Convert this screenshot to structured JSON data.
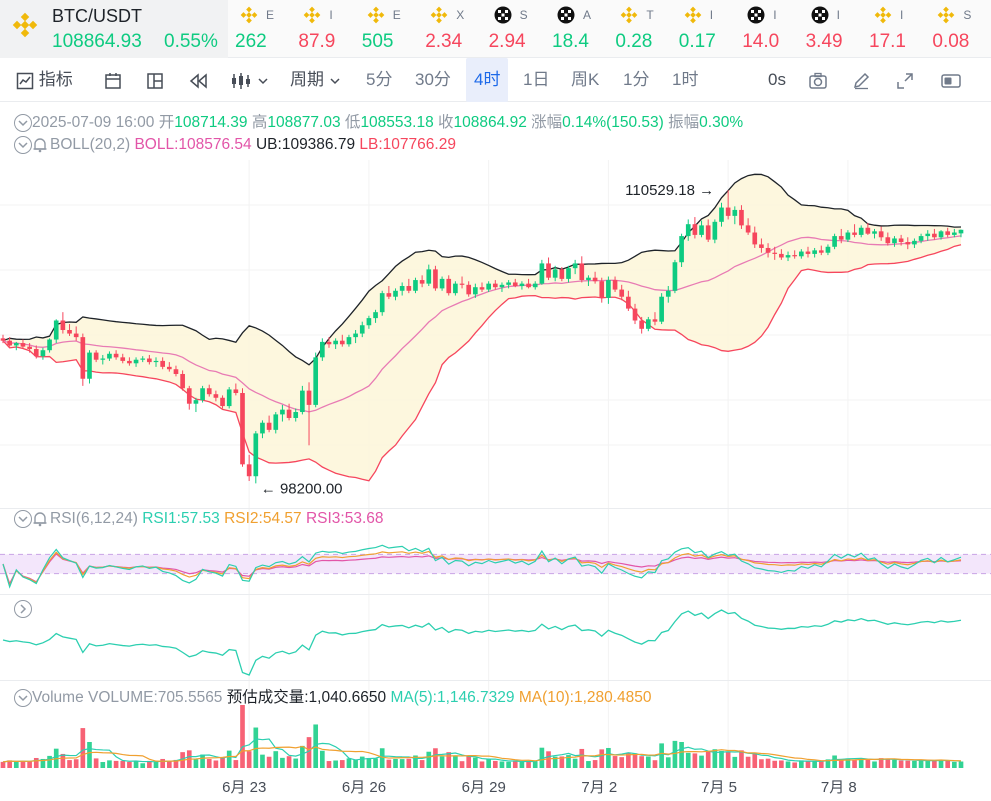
{
  "ticker": {
    "main": {
      "symbol": "BTC/USDT",
      "price": "108864.93",
      "change": "0.55%"
    },
    "items": [
      {
        "icon": "binance-icon",
        "name": "E",
        "value": "262",
        "dir": "up"
      },
      {
        "icon": "binance-icon",
        "name": "I",
        "value": "87.9",
        "dir": "dn"
      },
      {
        "icon": "binance-icon",
        "name": "E",
        "value": "505",
        "dir": "up"
      },
      {
        "icon": "binance-icon",
        "name": "X",
        "value": "2.34",
        "dir": "dn"
      },
      {
        "icon": "okx-icon",
        "name": "S",
        "value": "2.94",
        "dir": "dn"
      },
      {
        "icon": "okx-icon",
        "name": "A",
        "value": "18.4",
        "dir": "up"
      },
      {
        "icon": "binance-icon",
        "name": "T",
        "value": "0.28",
        "dir": "up"
      },
      {
        "icon": "binance-icon",
        "name": "I",
        "value": "0.17",
        "dir": "up"
      },
      {
        "icon": "okx-icon",
        "name": "I",
        "value": "14.0",
        "dir": "dn"
      },
      {
        "icon": "okx-icon",
        "name": "I",
        "value": "3.49",
        "dir": "dn"
      },
      {
        "icon": "binance-icon",
        "name": "I",
        "value": "17.1",
        "dir": "dn"
      },
      {
        "icon": "binance-icon",
        "name": "S",
        "value": "0.08",
        "dir": "dn"
      }
    ]
  },
  "toolbar": {
    "indicators": "指标",
    "period": "周期",
    "intervals": [
      "5分",
      "30分",
      "4时",
      "1日",
      "周K",
      "1分",
      "1时"
    ],
    "active_interval": "4时",
    "countdown": "0s"
  },
  "ohlc": {
    "date": "2025-07-09 16:00",
    "open_label": "开",
    "open": "108714.39",
    "high_label": "高",
    "high": "108877.03",
    "low_label": "低",
    "low": "108553.18",
    "close_label": "收",
    "close": "108864.92",
    "change_label": "涨幅",
    "change": "0.14%(150.53)",
    "amp_label": "振幅",
    "amp": "0.30%"
  },
  "boll": {
    "name": "BOLL(20,2)",
    "mid": "BOLL:108576.54",
    "ub": "UB:109386.79",
    "lb": "LB:107766.29"
  },
  "rsi": {
    "name": "RSI(6,12,24)",
    "rsi1": "RSI1:57.53",
    "rsi2": "RSI2:54.57",
    "rsi3": "RSI3:53.68"
  },
  "volume": {
    "name": "Volume",
    "vol": "VOLUME:705.5565",
    "est": "预估成交量:1,040.6650",
    "ma5": "MA(5):1,146.7329",
    "ma10": "MA(10):1,280.4850"
  },
  "annotations": {
    "high": "110529.18",
    "low": "98200.00"
  },
  "chart_data": {
    "type": "candlestick",
    "x_ticks": [
      "6月 23",
      "6月 26",
      "6月 29",
      "7月 2",
      "7月 5",
      "7月 8"
    ],
    "x_tick_candle_index": [
      37,
      55,
      73,
      91,
      109,
      127
    ],
    "price_range": [
      97500,
      111800
    ],
    "candles": [
      [
        104300,
        104450,
        104100,
        104200
      ],
      [
        104200,
        104350,
        103950,
        104000
      ],
      [
        104000,
        104150,
        103800,
        104100
      ],
      [
        104100,
        104250,
        103850,
        103950
      ],
      [
        103950,
        104100,
        103700,
        103850
      ],
      [
        103850,
        104000,
        103450,
        103550
      ],
      [
        103550,
        103900,
        103400,
        103800
      ],
      [
        103800,
        104300,
        103700,
        104250
      ],
      [
        104250,
        105100,
        104100,
        105050
      ],
      [
        105050,
        105400,
        104500,
        104650
      ],
      [
        104650,
        104900,
        104400,
        104500
      ],
      [
        104500,
        104800,
        104200,
        104350
      ],
      [
        104350,
        104500,
        102300,
        102600
      ],
      [
        102600,
        103800,
        102400,
        103700
      ],
      [
        103700,
        103800,
        103300,
        103400
      ],
      [
        103400,
        103600,
        103200,
        103450
      ],
      [
        103450,
        103750,
        103350,
        103650
      ],
      [
        103650,
        103800,
        103400,
        103500
      ],
      [
        103500,
        103650,
        103250,
        103350
      ],
      [
        103350,
        103500,
        103150,
        103250
      ],
      [
        103250,
        103500,
        103100,
        103400
      ],
      [
        103400,
        103550,
        103300,
        103450
      ],
      [
        103450,
        103600,
        103200,
        103300
      ],
      [
        103300,
        103500,
        103100,
        103350
      ],
      [
        103350,
        103500,
        103000,
        103100
      ],
      [
        103100,
        103300,
        102900,
        103000
      ],
      [
        103000,
        103150,
        102700,
        102800
      ],
      [
        102800,
        102950,
        102100,
        102200
      ],
      [
        102200,
        102300,
        101300,
        101550
      ],
      [
        101550,
        101800,
        101200,
        101700
      ],
      [
        101700,
        102300,
        101600,
        102200
      ],
      [
        102200,
        102350,
        101850,
        101950
      ],
      [
        101950,
        102100,
        101650,
        101800
      ],
      [
        101800,
        101900,
        101350,
        101450
      ],
      [
        101450,
        102250,
        101350,
        102150
      ],
      [
        102150,
        102400,
        101900,
        102000
      ],
      [
        102000,
        102200,
        98900,
        99000
      ],
      [
        99000,
        99400,
        98300,
        98500
      ],
      [
        98500,
        100400,
        98200,
        100300
      ],
      [
        100300,
        100850,
        100100,
        100750
      ],
      [
        100750,
        101050,
        100350,
        100450
      ],
      [
        100450,
        101200,
        100300,
        101100
      ],
      [
        101100,
        101500,
        100800,
        101300
      ],
      [
        101300,
        101550,
        100850,
        100950
      ],
      [
        100950,
        101350,
        100800,
        101200
      ],
      [
        101200,
        102300,
        101100,
        102100
      ],
      [
        102100,
        102450,
        99800,
        101500
      ],
      [
        101500,
        103700,
        101400,
        103500
      ],
      [
        103500,
        104300,
        103350,
        104150
      ],
      [
        104150,
        104350,
        103900,
        104050
      ],
      [
        104050,
        104300,
        103850,
        104200
      ],
      [
        104200,
        104450,
        103950,
        104050
      ],
      [
        104050,
        104450,
        103950,
        104350
      ],
      [
        104350,
        104650,
        104100,
        104500
      ],
      [
        104500,
        105000,
        104350,
        104850
      ],
      [
        104850,
        105250,
        104700,
        105150
      ],
      [
        105150,
        105500,
        104950,
        105400
      ],
      [
        105400,
        106300,
        105250,
        106200
      ],
      [
        106200,
        106500,
        105950,
        106050
      ],
      [
        106050,
        106400,
        105900,
        106300
      ],
      [
        106300,
        106650,
        106100,
        106500
      ],
      [
        106500,
        106800,
        106200,
        106300
      ],
      [
        106300,
        106850,
        106200,
        106750
      ],
      [
        106750,
        106950,
        106450,
        106600
      ],
      [
        106600,
        107400,
        106500,
        107200
      ],
      [
        107200,
        107350,
        106300,
        106400
      ],
      [
        106400,
        106900,
        106300,
        106800
      ],
      [
        106800,
        106950,
        106100,
        106200
      ],
      [
        106200,
        106700,
        106100,
        106600
      ],
      [
        106600,
        106900,
        106400,
        106550
      ],
      [
        106550,
        106700,
        106050,
        106150
      ],
      [
        106150,
        106600,
        106000,
        106450
      ],
      [
        106450,
        106650,
        106250,
        106350
      ],
      [
        106350,
        106700,
        106250,
        106600
      ],
      [
        106600,
        106750,
        106350,
        106450
      ],
      [
        106450,
        106650,
        106250,
        106550
      ],
      [
        106550,
        106750,
        106400,
        106650
      ],
      [
        106650,
        106800,
        106450,
        106500
      ],
      [
        106500,
        106700,
        106350,
        106600
      ],
      [
        106600,
        106800,
        106400,
        106450
      ],
      [
        106450,
        106700,
        106350,
        106600
      ],
      [
        106600,
        107600,
        106550,
        107450
      ],
      [
        107450,
        107700,
        106750,
        106850
      ],
      [
        106850,
        107350,
        106700,
        107200
      ],
      [
        107200,
        107300,
        106700,
        106800
      ],
      [
        106800,
        107350,
        106650,
        107250
      ],
      [
        107250,
        107600,
        107000,
        107450
      ],
      [
        107450,
        107750,
        106650,
        106750
      ],
      [
        106750,
        106950,
        106500,
        106850
      ],
      [
        106850,
        107100,
        106600,
        106700
      ],
      [
        106700,
        106850,
        105800,
        106000
      ],
      [
        106000,
        106900,
        105750,
        106750
      ],
      [
        106750,
        106900,
        106250,
        106350
      ],
      [
        106350,
        106550,
        105900,
        106050
      ],
      [
        106050,
        106300,
        105450,
        105550
      ],
      [
        105550,
        105750,
        104900,
        105050
      ],
      [
        105050,
        105200,
        104500,
        104700
      ],
      [
        104700,
        105200,
        104600,
        105100
      ],
      [
        105100,
        105400,
        104850,
        105000
      ],
      [
        105000,
        106200,
        104900,
        106050
      ],
      [
        106050,
        106500,
        105800,
        106300
      ],
      [
        106300,
        107600,
        106200,
        107500
      ],
      [
        107500,
        108700,
        107300,
        108600
      ],
      [
        108600,
        109300,
        108400,
        109100
      ],
      [
        109100,
        109400,
        108500,
        108650
      ],
      [
        108650,
        109250,
        108550,
        109050
      ],
      [
        109050,
        109300,
        108350,
        108450
      ],
      [
        108450,
        109300,
        108300,
        109200
      ],
      [
        109200,
        110000,
        109000,
        109800
      ],
      [
        109800,
        110529,
        109300,
        109450
      ],
      [
        109450,
        109850,
        109100,
        109700
      ],
      [
        109700,
        109900,
        108900,
        109050
      ],
      [
        109050,
        109350,
        108650,
        108750
      ],
      [
        108750,
        109000,
        108100,
        108250
      ],
      [
        108250,
        108500,
        107900,
        108100
      ],
      [
        108100,
        108300,
        107700,
        107900
      ],
      [
        107900,
        108150,
        107600,
        107850
      ],
      [
        107850,
        108050,
        107600,
        107700
      ],
      [
        107700,
        107950,
        107550,
        107800
      ],
      [
        107800,
        108000,
        107650,
        107750
      ],
      [
        107750,
        108050,
        107650,
        107950
      ],
      [
        107950,
        108150,
        107700,
        107850
      ],
      [
        107850,
        108100,
        107700,
        108000
      ],
      [
        108000,
        108200,
        107800,
        107900
      ],
      [
        107900,
        108250,
        107800,
        108150
      ],
      [
        108150,
        108700,
        108050,
        108600
      ],
      [
        108600,
        108900,
        108300,
        108450
      ],
      [
        108450,
        108850,
        108350,
        108750
      ],
      [
        108750,
        109100,
        108550,
        108650
      ],
      [
        108650,
        109050,
        108550,
        108950
      ],
      [
        108950,
        109150,
        108650,
        108700
      ],
      [
        108700,
        108900,
        108500,
        108800
      ],
      [
        108800,
        109000,
        108400,
        108550
      ],
      [
        108550,
        108750,
        108200,
        108300
      ],
      [
        108300,
        108600,
        108150,
        108500
      ],
      [
        108500,
        108650,
        108200,
        108350
      ],
      [
        108350,
        108550,
        108050,
        108250
      ],
      [
        108250,
        108500,
        108100,
        108400
      ],
      [
        108400,
        108700,
        108300,
        108600
      ],
      [
        108600,
        108850,
        108400,
        108700
      ],
      [
        108700,
        108900,
        108450,
        108550
      ],
      [
        108550,
        108850,
        108450,
        108800
      ],
      [
        108800,
        108950,
        108550,
        108650
      ],
      [
        108650,
        108900,
        108550,
        108750
      ],
      [
        108714,
        108877,
        108553,
        108865
      ]
    ],
    "volume_range": [
      0,
      6000
    ]
  }
}
